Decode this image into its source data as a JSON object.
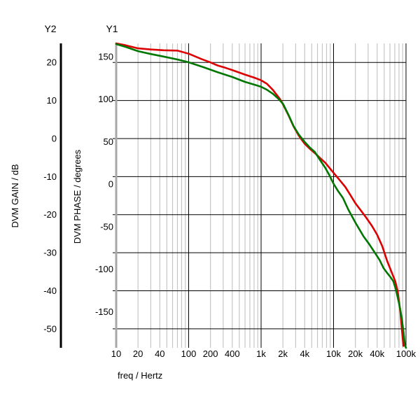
{
  "labels": {
    "y2_name": "Y2",
    "y1_name": "Y1",
    "y2_title": "DVM GAIN / dB",
    "y1_title": "DVM PHASE / degrees",
    "x_title": "freq / Hertz"
  },
  "colors": {
    "gain_curve": "#dd0000",
    "phase_curve": "#007700",
    "grid_minor": "#c6c6c6",
    "grid_major": "#000000",
    "y1_axis_edge": "#a8a8a8",
    "y2_axis_line": "#000000",
    "background": "#ffffff"
  },
  "chart_data": {
    "type": "line",
    "title": "",
    "x_axis": {
      "label": "freq / Hertz",
      "scale": "log",
      "range": [
        10,
        100000
      ],
      "ticks": [
        {
          "value": 10,
          "label": "10"
        },
        {
          "value": 20,
          "label": "20"
        },
        {
          "value": 40,
          "label": "40"
        },
        {
          "value": 100,
          "label": "100"
        },
        {
          "value": 200,
          "label": "200"
        },
        {
          "value": 400,
          "label": "400"
        },
        {
          "value": 1000,
          "label": "1k"
        },
        {
          "value": 2000,
          "label": "2k"
        },
        {
          "value": 4000,
          "label": "4k"
        },
        {
          "value": 10000,
          "label": "10k"
        },
        {
          "value": 20000,
          "label": "20k"
        },
        {
          "value": 40000,
          "label": "40k"
        },
        {
          "value": 100000,
          "label": "100k"
        }
      ],
      "minor_grid_multiples": [
        2,
        3,
        4,
        5,
        6,
        7,
        8,
        9
      ],
      "major_grid_decades": [
        100,
        1000,
        10000
      ]
    },
    "y_axes": [
      {
        "id": "Y2",
        "label": "DVM GAIN / dB",
        "range": [
          -55,
          25
        ],
        "ticks": [
          20,
          10,
          0,
          -10,
          -20,
          -30,
          -40,
          -50
        ],
        "gridlines": true
      },
      {
        "id": "Y1",
        "label": "DVM PHASE / degrees",
        "range": [
          -192.5,
          165.5
        ],
        "ticks": [
          150,
          100,
          50,
          0,
          -50,
          -100,
          -150
        ],
        "gridlines": false
      }
    ],
    "legend": "none",
    "series": [
      {
        "name": "DVM GAIN",
        "axis": "Y2",
        "color": "#dd0000",
        "points": [
          [
            10,
            25.0
          ],
          [
            13.5,
            24.5
          ],
          [
            20,
            23.7
          ],
          [
            30,
            23.4
          ],
          [
            45,
            23.2
          ],
          [
            70,
            23.1
          ],
          [
            100,
            22.3
          ],
          [
            150,
            20.9
          ],
          [
            200,
            20.0
          ],
          [
            250,
            19.2
          ],
          [
            320,
            18.6
          ],
          [
            400,
            18.0
          ],
          [
            600,
            16.8
          ],
          [
            800,
            16.0
          ],
          [
            1000,
            15.3
          ],
          [
            1200,
            14.4
          ],
          [
            1450,
            12.8
          ],
          [
            1830,
            10.3
          ],
          [
            2000,
            9.0
          ],
          [
            2400,
            6.0
          ],
          [
            2800,
            3.2
          ],
          [
            3300,
            0.8
          ],
          [
            4000,
            -1.4
          ],
          [
            4700,
            -2.7
          ],
          [
            5500,
            -3.8
          ],
          [
            6500,
            -5.1
          ],
          [
            7700,
            -6.4
          ],
          [
            10000,
            -9.0
          ],
          [
            12000,
            -10.8
          ],
          [
            14500,
            -12.7
          ],
          [
            17000,
            -14.8
          ],
          [
            20000,
            -17.0
          ],
          [
            24000,
            -19.0
          ],
          [
            28000,
            -20.7
          ],
          [
            34000,
            -23.0
          ],
          [
            40000,
            -25.3
          ],
          [
            47000,
            -28.3
          ],
          [
            55000,
            -32.2
          ],
          [
            63000,
            -35.0
          ],
          [
            71000,
            -37.5
          ],
          [
            76000,
            -39.8
          ],
          [
            80000,
            -42.7
          ],
          [
            84000,
            -46.0
          ],
          [
            87500,
            -50.0
          ],
          [
            90000,
            -52.5
          ],
          [
            92000,
            -54.5
          ]
        ]
      },
      {
        "name": "DVM PHASE",
        "axis": "Y1",
        "color": "#007700",
        "points": [
          [
            10,
            164.7
          ],
          [
            13.5,
            161.4
          ],
          [
            20,
            156.4
          ],
          [
            30,
            153.0
          ],
          [
            45,
            150.0
          ],
          [
            70,
            146.6
          ],
          [
            100,
            143.3
          ],
          [
            160,
            137.5
          ],
          [
            250,
            131.7
          ],
          [
            400,
            126.0
          ],
          [
            600,
            120.2
          ],
          [
            800,
            117.0
          ],
          [
            1000,
            114.5
          ],
          [
            1200,
            111.0
          ],
          [
            1450,
            106.3
          ],
          [
            1700,
            101.0
          ],
          [
            2000,
            94.6
          ],
          [
            2400,
            81.0
          ],
          [
            2800,
            68.4
          ],
          [
            3300,
            58.5
          ],
          [
            4000,
            49.5
          ],
          [
            4700,
            43.0
          ],
          [
            5500,
            37.9
          ],
          [
            6500,
            28.5
          ],
          [
            7700,
            19.0
          ],
          [
            8800,
            10.0
          ],
          [
            10000,
            0.5
          ],
          [
            11500,
            -8.0
          ],
          [
            13500,
            -16.4
          ],
          [
            16000,
            -30.0
          ],
          [
            20000,
            -45.2
          ],
          [
            26000,
            -61.6
          ],
          [
            31000,
            -70.5
          ],
          [
            36500,
            -79.7
          ],
          [
            43000,
            -89.0
          ],
          [
            49000,
            -98.7
          ],
          [
            55000,
            -104.5
          ],
          [
            61000,
            -109.4
          ],
          [
            67000,
            -114.3
          ],
          [
            73000,
            -125.0
          ],
          [
            79500,
            -139.0
          ],
          [
            83500,
            -148.0
          ],
          [
            87500,
            -158.0
          ],
          [
            92500,
            -174.4
          ],
          [
            96500,
            -189.2
          ],
          [
            100000,
            -192.5
          ]
        ]
      }
    ]
  }
}
